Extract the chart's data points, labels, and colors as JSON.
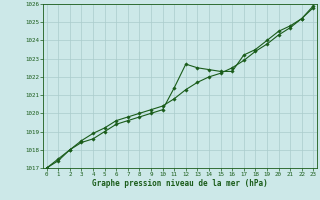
{
  "hours": [
    0,
    1,
    2,
    3,
    4,
    5,
    6,
    7,
    8,
    9,
    10,
    11,
    12,
    13,
    14,
    15,
    16,
    17,
    18,
    19,
    20,
    21,
    22,
    23
  ],
  "pressure_main": [
    1017.0,
    1017.4,
    1018.0,
    1018.4,
    1018.6,
    1019.0,
    1019.4,
    1019.6,
    1019.8,
    1020.0,
    1020.2,
    1021.4,
    1022.7,
    1022.5,
    1022.4,
    1022.3,
    1022.3,
    1023.2,
    1023.5,
    1024.0,
    1024.5,
    1024.8,
    1025.2,
    1025.9
  ],
  "pressure_trend": [
    1017.0,
    1017.5,
    1018.0,
    1018.5,
    1018.9,
    1019.2,
    1019.6,
    1019.8,
    1020.0,
    1020.2,
    1020.4,
    1020.8,
    1021.3,
    1021.7,
    1022.0,
    1022.2,
    1022.5,
    1022.9,
    1023.4,
    1023.8,
    1024.3,
    1024.7,
    1025.2,
    1025.8
  ],
  "ylim": [
    1017,
    1026
  ],
  "xlim": [
    -0.3,
    23.3
  ],
  "yticks": [
    1017,
    1018,
    1019,
    1020,
    1021,
    1022,
    1023,
    1024,
    1025,
    1026
  ],
  "xticks": [
    0,
    1,
    2,
    3,
    4,
    5,
    6,
    7,
    8,
    9,
    10,
    11,
    12,
    13,
    14,
    15,
    16,
    17,
    18,
    19,
    20,
    21,
    22,
    23
  ],
  "bg_color": "#cce8e8",
  "line_color": "#1a5c1a",
  "grid_color": "#aacccc",
  "xlabel": "Graphe pression niveau de la mer (hPa)",
  "xlabel_color": "#1a5c1a",
  "tick_color": "#1a5c1a",
  "spine_color": "#1a5c1a",
  "tick_fontsize": 4.2,
  "label_fontsize": 5.5,
  "linewidth": 0.8,
  "marker": "D",
  "marker_size": 1.8
}
